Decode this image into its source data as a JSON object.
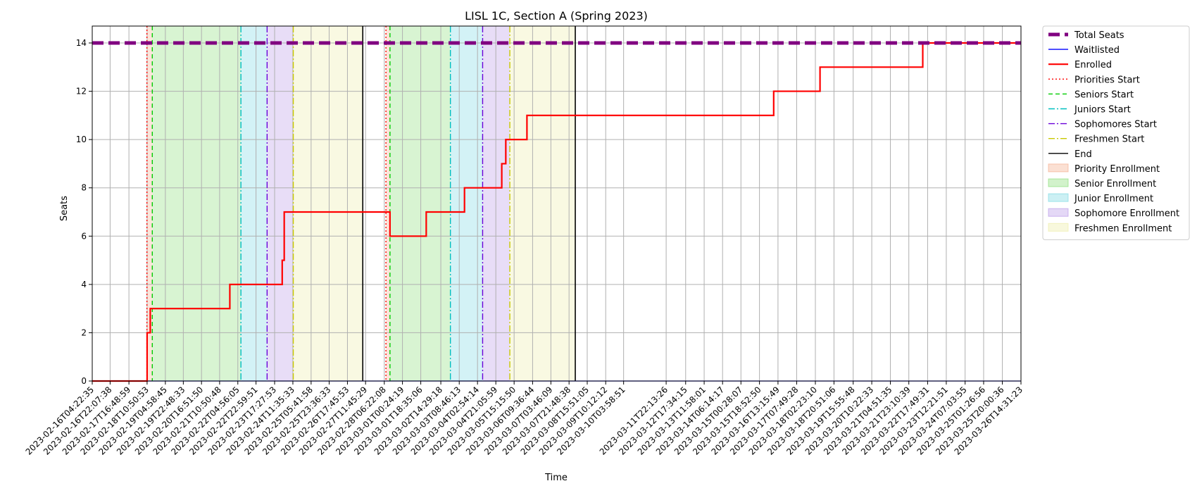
{
  "chart_data": {
    "type": "line",
    "title": "LISL 1C, Section A (Spring 2023)",
    "xlabel": "Time",
    "ylabel": "Seats",
    "ylim": [
      0,
      14.7
    ],
    "yticks": [
      0,
      2,
      4,
      6,
      8,
      10,
      12,
      14
    ],
    "xlim": [
      "2023-02-16T04:22:35",
      "2023-03-26T14:31:23"
    ],
    "grid": true,
    "legend_position": "outside-right-top",
    "xtick_labels": [
      "2023-02-16T04:22:35",
      "2023-02-16T22:07:38",
      "2023-02-17T16:48:59",
      "2023-02-18T10:50:53",
      "2023-02-19T04:58:45",
      "2023-02-19T22:48:33",
      "2023-02-20T16:51:50",
      "2023-02-21T10:50:48",
      "2023-02-22T04:56:05",
      "2023-02-22T22:59:51",
      "2023-02-23T17:27:53",
      "2023-02-24T11:35:33",
      "2023-02-25T05:41:58",
      "2023-02-25T23:36:33",
      "2023-02-26T17:45:53",
      "2023-02-27T11:45:29",
      "2023-02-28T06:22:08",
      "2023-03-01T00:24:19",
      "2023-03-01T18:35:06",
      "2023-03-02T14:29:18",
      "2023-03-03T08:46:13",
      "2023-03-04T02:54:14",
      "2023-03-04T21:05:59",
      "2023-03-05T15:15:50",
      "2023-03-06T09:36:44",
      "2023-03-07T03:46:09",
      "2023-03-07T21:48:38",
      "2023-03-08T15:51:05",
      "2023-03-09T10:12:12",
      "2023-03-10T03:58:51",
      "2023-03-11T22:13:26",
      "2023-03-12T17:34:15",
      "2023-03-13T11:58:01",
      "2023-03-14T06:14:17",
      "2023-03-15T00:28:07",
      "2023-03-15T18:52:50",
      "2023-03-16T13:15:49",
      "2023-03-17T07:49:28",
      "2023-03-18T02:23:10",
      "2023-03-18T20:51:06",
      "2023-03-19T15:55:48",
      "2023-03-20T10:22:33",
      "2023-03-21T04:51:35",
      "2023-03-21T23:10:39",
      "2023-03-22T17:49:31",
      "2023-03-23T12:21:51",
      "2023-03-24T07:03:55",
      "2023-03-25T01:26:56",
      "2023-03-25T20:00:36",
      "2023-03-26T14:31:23"
    ],
    "series": [
      {
        "name": "Total Seats",
        "color": "#800080",
        "style": "dashed-thick",
        "points": [
          {
            "x": "2023-02-16T04:22:35",
            "y": 14
          },
          {
            "x": "2023-03-26T14:31:23",
            "y": 14
          }
        ]
      },
      {
        "name": "Waitlisted",
        "color": "#0000ff",
        "style": "solid",
        "points": [
          {
            "x": "2023-02-16T04:22:35",
            "y": 0
          },
          {
            "x": "2023-03-26T14:31:23",
            "y": 0
          }
        ]
      },
      {
        "name": "Enrolled",
        "color": "#ff0000",
        "style": "solid-step",
        "points": [
          {
            "x": "2023-02-16T04:22:35",
            "y": 0
          },
          {
            "x": "2023-02-18T10:50:53",
            "y": 0
          },
          {
            "x": "2023-02-18T10:50:53",
            "y": 2
          },
          {
            "x": "2023-02-18T14:00:00",
            "y": 2
          },
          {
            "x": "2023-02-18T14:00:00",
            "y": 3
          },
          {
            "x": "2023-02-21T21:00:00",
            "y": 3
          },
          {
            "x": "2023-02-21T21:00:00",
            "y": 4
          },
          {
            "x": "2023-02-24T01:00:00",
            "y": 4
          },
          {
            "x": "2023-02-24T01:00:00",
            "y": 5
          },
          {
            "x": "2023-02-24T03:00:00",
            "y": 5
          },
          {
            "x": "2023-02-24T03:00:00",
            "y": 7
          },
          {
            "x": "2023-02-28T12:00:00",
            "y": 7
          },
          {
            "x": "2023-02-28T12:00:00",
            "y": 6
          },
          {
            "x": "2023-03-02T00:00:00",
            "y": 6
          },
          {
            "x": "2023-03-02T00:00:00",
            "y": 7
          },
          {
            "x": "2023-03-03T14:00:00",
            "y": 7
          },
          {
            "x": "2023-03-03T14:00:00",
            "y": 8
          },
          {
            "x": "2023-03-05T03:00:00",
            "y": 8
          },
          {
            "x": "2023-03-05T03:00:00",
            "y": 9
          },
          {
            "x": "2023-03-05T07:00:00",
            "y": 9
          },
          {
            "x": "2023-03-05T07:00:00",
            "y": 10
          },
          {
            "x": "2023-03-06T04:00:00",
            "y": 10
          },
          {
            "x": "2023-03-06T04:00:00",
            "y": 11
          },
          {
            "x": "2023-03-16T09:00:00",
            "y": 11
          },
          {
            "x": "2023-03-16T09:00:00",
            "y": 12
          },
          {
            "x": "2023-03-18T07:00:00",
            "y": 12
          },
          {
            "x": "2023-03-18T07:00:00",
            "y": 13
          },
          {
            "x": "2023-03-22T13:00:00",
            "y": 13
          },
          {
            "x": "2023-03-22T13:00:00",
            "y": 14
          },
          {
            "x": "2023-03-26T14:31:23",
            "y": 14
          }
        ]
      }
    ],
    "vlines": [
      {
        "name": "Priorities Start",
        "color": "#ff0000",
        "style": "dotted",
        "at": [
          "2023-02-18T10:40:00",
          "2023-02-28T08:00:00"
        ]
      },
      {
        "name": "Seniors Start",
        "color": "#00cc00",
        "style": "dashed",
        "at": [
          "2023-02-18T16:00:00",
          "2023-02-28T12:00:00"
        ]
      },
      {
        "name": "Juniors Start",
        "color": "#00bfbf",
        "style": "dashdot",
        "at": [
          "2023-02-22T08:00:00",
          "2023-03-03T00:00:00"
        ]
      },
      {
        "name": "Sophomores Start",
        "color": "#6a00d8",
        "style": "dashdot",
        "at": [
          "2023-02-23T10:00:00",
          "2023-03-04T08:00:00"
        ]
      },
      {
        "name": "Freshmen Start",
        "color": "#c8c800",
        "style": "dashdot",
        "at": [
          "2023-02-24T12:00:00",
          "2023-03-05T11:00:00"
        ]
      },
      {
        "name": "End",
        "color": "#000000",
        "style": "solid",
        "at": [
          "2023-02-27T09:00:00",
          "2023-03-08T04:00:00"
        ]
      }
    ],
    "spans": [
      {
        "name": "Priority Enrollment",
        "color": "#f4a582",
        "ranges": [
          [
            "2023-02-18T10:40:00",
            "2023-02-18T16:00:00"
          ],
          [
            "2023-02-28T08:00:00",
            "2023-02-28T12:00:00"
          ]
        ]
      },
      {
        "name": "Senior Enrollment",
        "color": "#7fdb6a",
        "ranges": [
          [
            "2023-02-18T16:00:00",
            "2023-02-22T08:00:00"
          ],
          [
            "2023-02-28T12:00:00",
            "2023-03-03T00:00:00"
          ]
        ]
      },
      {
        "name": "Junior Enrollment",
        "color": "#6ed5e0",
        "ranges": [
          [
            "2023-02-22T08:00:00",
            "2023-02-23T10:00:00"
          ],
          [
            "2023-03-03T00:00:00",
            "2023-03-04T08:00:00"
          ]
        ]
      },
      {
        "name": "Sophomore Enrollment",
        "color": "#b28fe6",
        "ranges": [
          [
            "2023-02-23T10:00:00",
            "2023-02-24T12:00:00"
          ],
          [
            "2023-03-04T08:00:00",
            "2023-03-05T11:00:00"
          ]
        ]
      },
      {
        "name": "Freshmen Enrollment",
        "color": "#ecec9e",
        "ranges": [
          [
            "2023-02-24T12:00:00",
            "2023-02-27T09:00:00"
          ],
          [
            "2023-03-05T11:00:00",
            "2023-03-08T04:00:00"
          ]
        ]
      }
    ],
    "legend": [
      {
        "label": "Total Seats",
        "kind": "line",
        "color": "#800080",
        "style": "dashed-thick"
      },
      {
        "label": "Waitlisted",
        "kind": "line",
        "color": "#0000ff",
        "style": "solid"
      },
      {
        "label": "Enrolled",
        "kind": "line",
        "color": "#ff0000",
        "style": "solid-thick"
      },
      {
        "label": "Priorities Start",
        "kind": "line",
        "color": "#ff0000",
        "style": "dotted"
      },
      {
        "label": "Seniors Start",
        "kind": "line",
        "color": "#00cc00",
        "style": "dashed"
      },
      {
        "label": "Juniors Start",
        "kind": "line",
        "color": "#00bfbf",
        "style": "dashdot"
      },
      {
        "label": "Sophomores Start",
        "kind": "line",
        "color": "#6a00d8",
        "style": "dashdot"
      },
      {
        "label": "Freshmen Start",
        "kind": "line",
        "color": "#c8c800",
        "style": "dashdot"
      },
      {
        "label": "End",
        "kind": "line",
        "color": "#000000",
        "style": "solid"
      },
      {
        "label": "Priority Enrollment",
        "kind": "patch",
        "color": "#f4a582"
      },
      {
        "label": "Senior Enrollment",
        "kind": "patch",
        "color": "#7fdb6a"
      },
      {
        "label": "Junior Enrollment",
        "kind": "patch",
        "color": "#6ed5e0"
      },
      {
        "label": "Sophomore Enrollment",
        "kind": "patch",
        "color": "#b28fe6"
      },
      {
        "label": "Freshmen Enrollment",
        "kind": "patch",
        "color": "#ecec9e"
      }
    ]
  }
}
